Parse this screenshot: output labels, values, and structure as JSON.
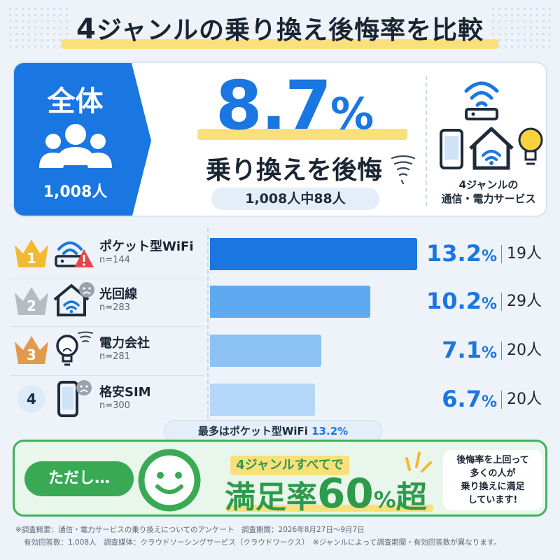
{
  "title": {
    "number": "4",
    "text": "ジャンルの乗り換え後悔率を比較"
  },
  "summary": {
    "whole_label": "全体",
    "whole_count": "1,008人",
    "big_value": "8.7",
    "big_unit": "%",
    "regret_label": "乗り換えを後悔",
    "of_count": "1,008人中88人",
    "services_line1": "4ジャンルの",
    "services_line2": "通信・電力サービス"
  },
  "chart_data": {
    "type": "bar",
    "orientation": "horizontal",
    "categories": [
      "ポケット型WiFi",
      "光回線",
      "電力会社",
      "格安SIM"
    ],
    "values": [
      13.2,
      10.2,
      7.1,
      6.7
    ],
    "value_unit": "%",
    "samples": [
      "n=144",
      "n=283",
      "n=281",
      "n=300"
    ],
    "regret_counts": [
      "19人",
      "29人",
      "20人",
      "20人"
    ],
    "ranks": [
      "1",
      "2",
      "3",
      "4"
    ],
    "xlim": [
      0,
      13.2
    ],
    "colors": [
      "#1a76e0",
      "#5eaaf0",
      "#8cc2f4",
      "#b4d7f7"
    ],
    "annotation": "最多はポケット型WiFi 13.2%"
  },
  "most_label": {
    "prefix": "最多はポケット型WiFi ",
    "value": "13.2%"
  },
  "satisfaction": {
    "however": "ただし…",
    "all_four": "4ジャンルすべてで",
    "rate_label": "満足率",
    "rate_value": "60",
    "rate_unit": "%",
    "rate_suffix": "超",
    "bubble_line1": "後悔率を上回って",
    "bubble_line2": "多くの人が",
    "bubble_line3": "乗り換えに満足",
    "bubble_line4": "しています!"
  },
  "footnote": {
    "line1": "※調査概要：通信・電力サービスの乗り換えについてのアンケート　調査期間：2026年8月27日〜9月7日",
    "line2": "有効回答数：1,008人　調査媒体：クラウドソーシングサービス（クラウドワークス）　※ジャンルによって調査期間・有効回答数が異なります。"
  },
  "colors": {
    "accent_blue": "#1a76e0",
    "highlight_yellow": "#f9e07a",
    "satisfaction_green": "#39a954",
    "gold": "#f2b933",
    "silver": "#b7bcc4",
    "bronze": "#e09a4a",
    "warning_red": "#e64545"
  }
}
